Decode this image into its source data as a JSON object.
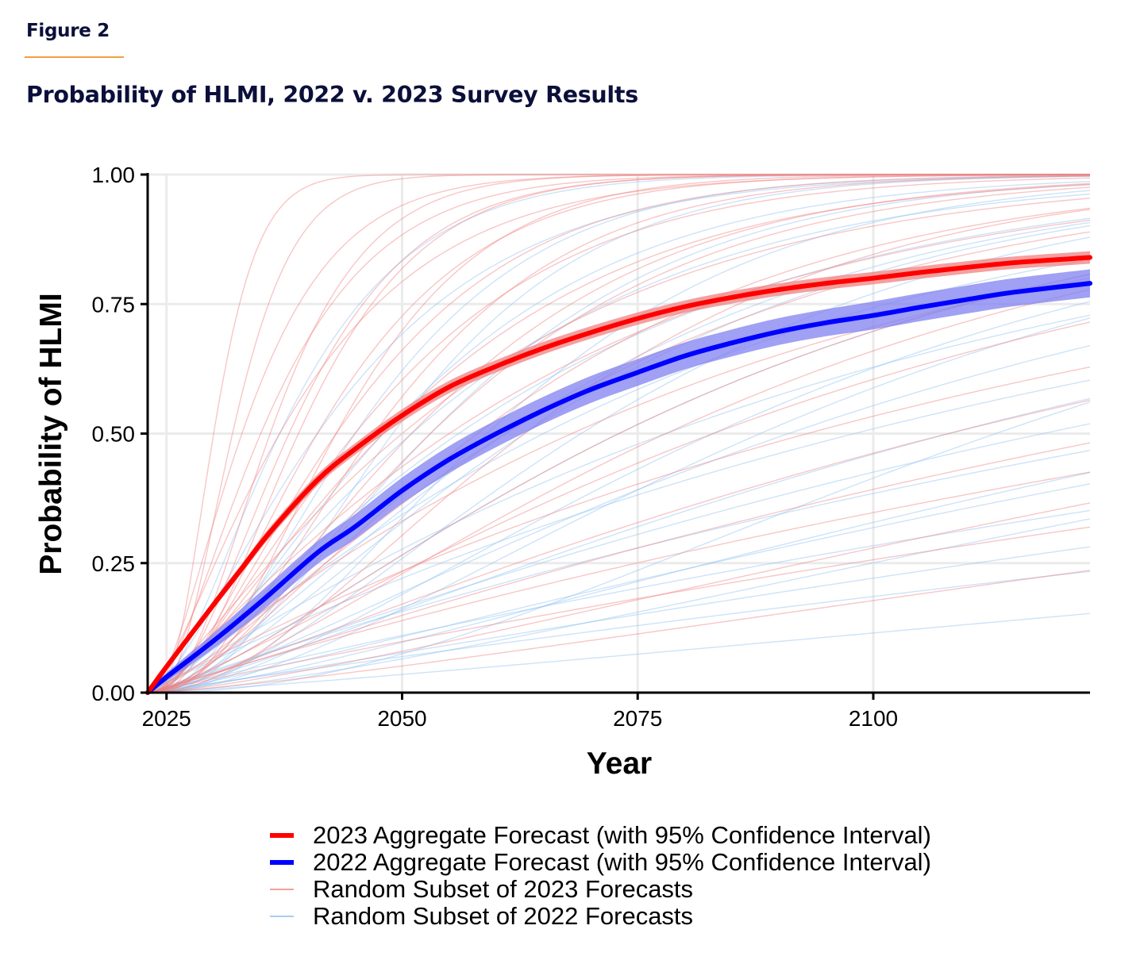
{
  "figure": {
    "label": "Figure 2",
    "title": "Probability of HLMI, 2022 v. 2023 Survey Results",
    "accent_rule_color": "#f0a040",
    "title_color": "#0b0f3a"
  },
  "chart_data": {
    "type": "line",
    "title": "Probability of HLMI, 2022 v. 2023 Survey Results",
    "xlabel": "Year",
    "ylabel": "Probability of HLMI",
    "xlim": [
      2023,
      2123
    ],
    "ylim": [
      0,
      1
    ],
    "x_ticks": [
      2025,
      2050,
      2075,
      2100
    ],
    "x_tick_labels": [
      "2025",
      "2050",
      "2075",
      "2100"
    ],
    "y_ticks": [
      0,
      0.25,
      0.5,
      0.75,
      1
    ],
    "y_tick_labels": [
      "0.00",
      "0.25",
      "0.50",
      "0.75",
      "1.00"
    ],
    "grid": true,
    "legend_position": "bottom",
    "legend": [
      {
        "label": "2023 Aggregate Forecast (with 95% Confidence Interval)",
        "color": "#ff0000",
        "style": "thick"
      },
      {
        "label": "2022 Aggregate Forecast (with 95% Confidence Interval)",
        "color": "#0000ff",
        "style": "thick"
      },
      {
        "label": "Random Subset of 2023 Forecasts",
        "color": "#f4a0a0",
        "style": "thin"
      },
      {
        "label": "Random Subset of 2022 Forecasts",
        "color": "#a8ccf0",
        "style": "thin"
      }
    ],
    "series": [
      {
        "name": "2023 Aggregate Forecast",
        "color": "#ff0000",
        "ci_color": "#f08080",
        "x": [
          2023,
          2025,
          2030,
          2033,
          2036,
          2041,
          2045,
          2050,
          2055,
          2060,
          2065,
          2070,
          2075,
          2080,
          2085,
          2090,
          2095,
          2100,
          2105,
          2110,
          2115,
          2123
        ],
        "y": [
          0.0,
          0.05,
          0.17,
          0.24,
          0.31,
          0.41,
          0.47,
          0.535,
          0.59,
          0.63,
          0.665,
          0.695,
          0.722,
          0.745,
          0.763,
          0.778,
          0.79,
          0.8,
          0.811,
          0.821,
          0.83,
          0.84
        ],
        "ci_halfwidth": [
          0.0,
          0.004,
          0.008,
          0.009,
          0.01,
          0.011,
          0.011,
          0.012,
          0.012,
          0.012,
          0.012,
          0.012,
          0.012,
          0.012,
          0.012,
          0.012,
          0.012,
          0.012,
          0.012,
          0.012,
          0.012,
          0.012
        ]
      },
      {
        "name": "2022 Aggregate Forecast",
        "color": "#0000ff",
        "ci_color": "#8080f0",
        "x": [
          2023,
          2025,
          2030,
          2035,
          2041,
          2045,
          2050,
          2055,
          2060,
          2065,
          2070,
          2075,
          2080,
          2085,
          2090,
          2095,
          2100,
          2105,
          2110,
          2115,
          2123
        ],
        "y": [
          0.0,
          0.03,
          0.1,
          0.175,
          0.27,
          0.32,
          0.39,
          0.45,
          0.5,
          0.545,
          0.585,
          0.618,
          0.65,
          0.675,
          0.697,
          0.714,
          0.728,
          0.744,
          0.759,
          0.773,
          0.79
        ],
        "ci_halfwidth": [
          0.0,
          0.008,
          0.015,
          0.02,
          0.022,
          0.024,
          0.025,
          0.026,
          0.026,
          0.026,
          0.026,
          0.026,
          0.026,
          0.026,
          0.026,
          0.026,
          0.027,
          0.027,
          0.027,
          0.027,
          0.027
        ]
      }
    ],
    "individual_forecasts": {
      "model": "gamma_cdf",
      "start_year": 2023,
      "subset_2023": {
        "color": "#f08080",
        "curves": [
          {
            "shape": 4.0,
            "median_years": 7
          },
          {
            "shape": 3.5,
            "median_years": 9
          },
          {
            "shape": 2.0,
            "median_years": 10
          },
          {
            "shape": 3.0,
            "median_years": 13
          },
          {
            "shape": 2.5,
            "median_years": 15
          },
          {
            "shape": 2.8,
            "median_years": 16
          },
          {
            "shape": 2.2,
            "median_years": 18
          },
          {
            "shape": 1.5,
            "median_years": 14
          },
          {
            "shape": 2.0,
            "median_years": 20
          },
          {
            "shape": 1.8,
            "median_years": 22
          },
          {
            "shape": 2.5,
            "median_years": 24
          },
          {
            "shape": 1.6,
            "median_years": 25
          },
          {
            "shape": 1.3,
            "median_years": 27
          },
          {
            "shape": 2.0,
            "median_years": 30
          },
          {
            "shape": 1.2,
            "median_years": 32
          },
          {
            "shape": 1.7,
            "median_years": 35
          },
          {
            "shape": 1.4,
            "median_years": 38
          },
          {
            "shape": 2.2,
            "median_years": 40
          },
          {
            "shape": 1.1,
            "median_years": 45
          },
          {
            "shape": 1.5,
            "median_years": 50
          },
          {
            "shape": 1.3,
            "median_years": 60
          },
          {
            "shape": 1.0,
            "median_years": 70
          },
          {
            "shape": 1.2,
            "median_years": 85
          },
          {
            "shape": 1.1,
            "median_years": 105
          },
          {
            "shape": 1.0,
            "median_years": 125
          },
          {
            "shape": 1.4,
            "median_years": 140
          },
          {
            "shape": 1.0,
            "median_years": 180
          },
          {
            "shape": 1.3,
            "median_years": 220
          },
          {
            "shape": 2.0,
            "median_years": 28
          },
          {
            "shape": 3.0,
            "median_years": 20
          },
          {
            "shape": 1.9,
            "median_years": 12
          },
          {
            "shape": 1.6,
            "median_years": 55
          }
        ]
      },
      "subset_2022": {
        "color": "#90c0f0",
        "curves": [
          {
            "shape": 2.0,
            "median_years": 14
          },
          {
            "shape": 1.6,
            "median_years": 18
          },
          {
            "shape": 2.4,
            "median_years": 22
          },
          {
            "shape": 1.8,
            "median_years": 25
          },
          {
            "shape": 1.5,
            "median_years": 28
          },
          {
            "shape": 2.2,
            "median_years": 30
          },
          {
            "shape": 1.3,
            "median_years": 33
          },
          {
            "shape": 2.6,
            "median_years": 36
          },
          {
            "shape": 1.7,
            "median_years": 40
          },
          {
            "shape": 1.2,
            "median_years": 42
          },
          {
            "shape": 2.0,
            "median_years": 46
          },
          {
            "shape": 1.5,
            "median_years": 50
          },
          {
            "shape": 1.1,
            "median_years": 55
          },
          {
            "shape": 1.8,
            "median_years": 60
          },
          {
            "shape": 1.4,
            "median_years": 68
          },
          {
            "shape": 1.0,
            "median_years": 75
          },
          {
            "shape": 1.3,
            "median_years": 85
          },
          {
            "shape": 1.1,
            "median_years": 95
          },
          {
            "shape": 1.0,
            "median_years": 110
          },
          {
            "shape": 1.2,
            "median_years": 130
          },
          {
            "shape": 1.0,
            "median_years": 160
          },
          {
            "shape": 1.1,
            "median_years": 200
          },
          {
            "shape": 1.0,
            "median_years": 260
          },
          {
            "shape": 1.2,
            "median_years": 350
          },
          {
            "shape": 2.8,
            "median_years": 26
          },
          {
            "shape": 1.6,
            "median_years": 38
          },
          {
            "shape": 1.9,
            "median_years": 65
          },
          {
            "shape": 1.4,
            "median_years": 120
          },
          {
            "shape": 2.3,
            "median_years": 90
          },
          {
            "shape": 1.5,
            "median_years": 150
          }
        ]
      }
    }
  }
}
